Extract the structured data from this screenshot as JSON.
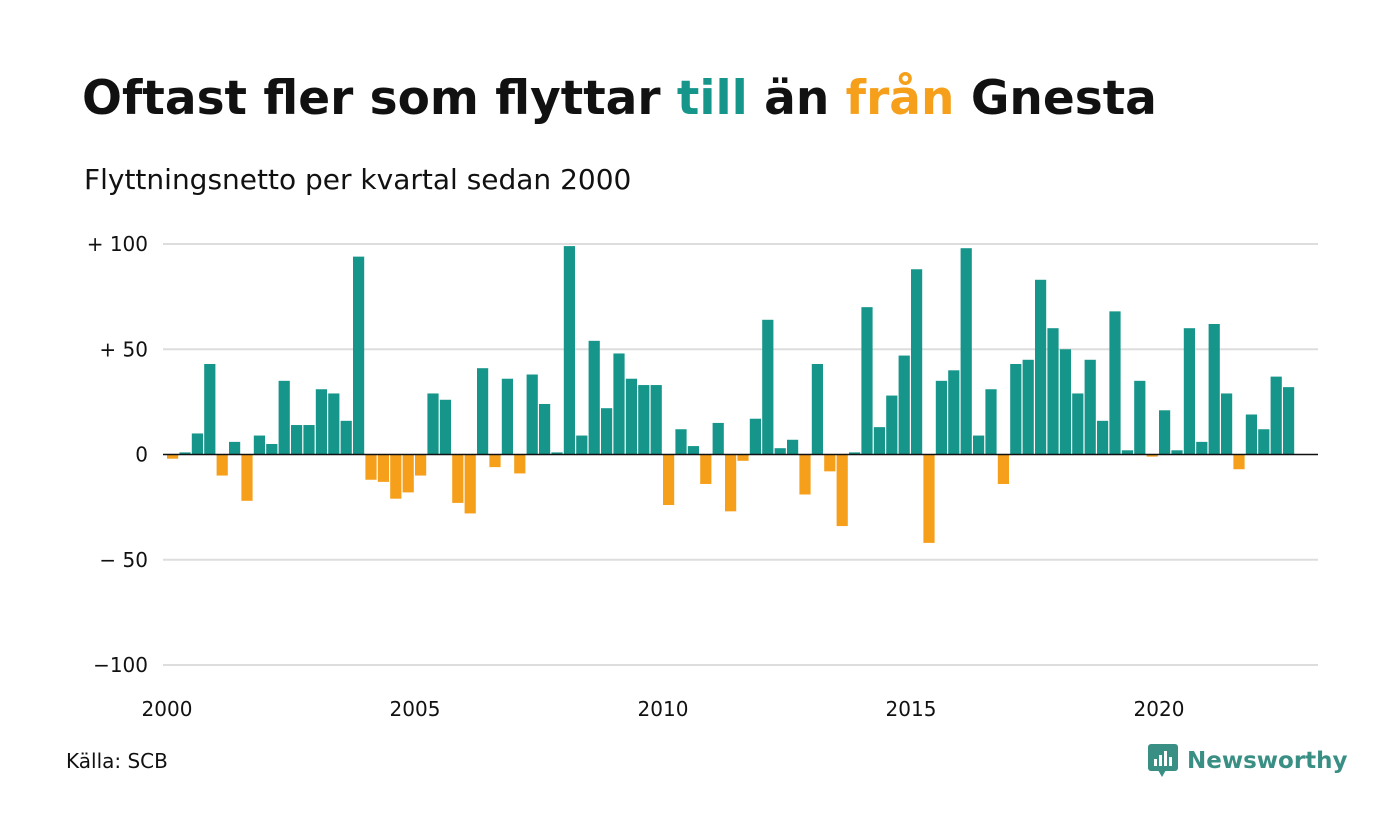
{
  "title": {
    "part1": "Oftast fler som flyttar ",
    "part2": "till",
    "part3": " än ",
    "part4": "från",
    "part5": " Gnesta"
  },
  "subtitle": "Flyttningsnetto per kvartal sedan 2000",
  "source": "Källa: SCB",
  "logo": {
    "text": "Newsworthy",
    "icon": "newsworthy-chart-icon"
  },
  "colors": {
    "positive": "#16968a",
    "negative": "#f59f1b",
    "gridline": "#dddddd",
    "zeroline": "#111111",
    "text": "#111111",
    "brand": "#3a8f85"
  },
  "chart_data": {
    "type": "bar",
    "x_start": 2000,
    "quarters_per_year": 4,
    "values": [
      -2,
      1,
      10,
      43,
      -10,
      6,
      -22,
      9,
      5,
      35,
      14,
      14,
      31,
      29,
      16,
      94,
      -12,
      -13,
      -21,
      -18,
      -10,
      29,
      26,
      -23,
      -28,
      41,
      -6,
      36,
      -9,
      38,
      24,
      1,
      99,
      9,
      54,
      22,
      48,
      36,
      33,
      33,
      -24,
      12,
      4,
      -14,
      15,
      -27,
      -3,
      17,
      64,
      3,
      7,
      -19,
      43,
      -8,
      -34,
      1,
      70,
      13,
      28,
      47,
      88,
      -42,
      35,
      40,
      98,
      9,
      31,
      -14,
      43,
      45,
      83,
      60,
      50,
      29,
      45,
      16,
      68,
      2,
      35,
      -1,
      21,
      2,
      60,
      6,
      62,
      29,
      -7,
      19,
      12,
      37,
      32
    ],
    "ylim": [
      -100,
      100
    ],
    "y_ticks": [
      {
        "value": 100,
        "label": "+ 100"
      },
      {
        "value": 50,
        "label": "+  50"
      },
      {
        "value": 0,
        "label": "0"
      },
      {
        "value": -50,
        "label": "− 50"
      },
      {
        "value": -100,
        "label": "−100"
      }
    ],
    "x_ticks": [
      {
        "year": 2000,
        "label": "2000"
      },
      {
        "year": 2005,
        "label": "2005"
      },
      {
        "year": 2010,
        "label": "2010"
      },
      {
        "year": 2015,
        "label": "2015"
      },
      {
        "year": 2020,
        "label": "2020"
      }
    ],
    "grid": true,
    "legend": "none"
  }
}
